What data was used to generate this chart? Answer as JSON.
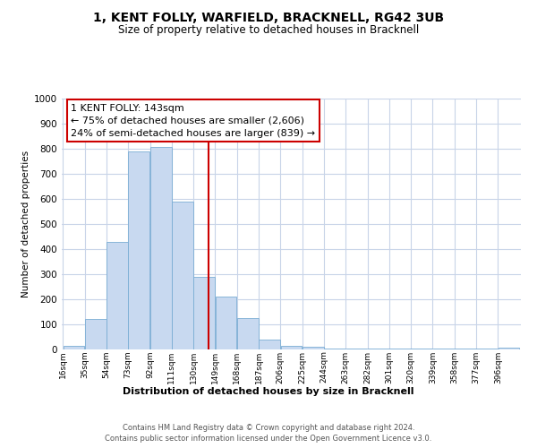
{
  "title": "1, KENT FOLLY, WARFIELD, BRACKNELL, RG42 3UB",
  "subtitle": "Size of property relative to detached houses in Bracknell",
  "xlabel": "Distribution of detached houses by size in Bracknell",
  "ylabel": "Number of detached properties",
  "bar_color": "#c8d9f0",
  "bar_edge_color": "#7aadd4",
  "background_color": "#ffffff",
  "grid_color": "#c8d4e8",
  "bin_labels": [
    "16sqm",
    "35sqm",
    "54sqm",
    "73sqm",
    "92sqm",
    "111sqm",
    "130sqm",
    "149sqm",
    "168sqm",
    "187sqm",
    "206sqm",
    "225sqm",
    "244sqm",
    "263sqm",
    "282sqm",
    "301sqm",
    "320sqm",
    "339sqm",
    "358sqm",
    "377sqm",
    "396sqm"
  ],
  "bin_left_edges": [
    16,
    35,
    54,
    73,
    92,
    111,
    130,
    149,
    168,
    187,
    206,
    225,
    244,
    263,
    282,
    301,
    320,
    339,
    358,
    377,
    396
  ],
  "bin_width": 19,
  "bar_heights": [
    15,
    120,
    430,
    790,
    808,
    590,
    290,
    210,
    125,
    40,
    15,
    10,
    5,
    3,
    3,
    2,
    2,
    2,
    2,
    2,
    8
  ],
  "vline_x": 143,
  "vline_color": "#cc0000",
  "annotation_title": "1 KENT FOLLY: 143sqm",
  "annotation_line1": "← 75% of detached houses are smaller (2,606)",
  "annotation_line2": "24% of semi-detached houses are larger (839) →",
  "annotation_box_color": "#ffffff",
  "annotation_box_edge": "#cc0000",
  "ylim": [
    0,
    1000
  ],
  "yticks": [
    0,
    100,
    200,
    300,
    400,
    500,
    600,
    700,
    800,
    900,
    1000
  ],
  "footer_line1": "Contains HM Land Registry data © Crown copyright and database right 2024.",
  "footer_line2": "Contains public sector information licensed under the Open Government Licence v3.0."
}
